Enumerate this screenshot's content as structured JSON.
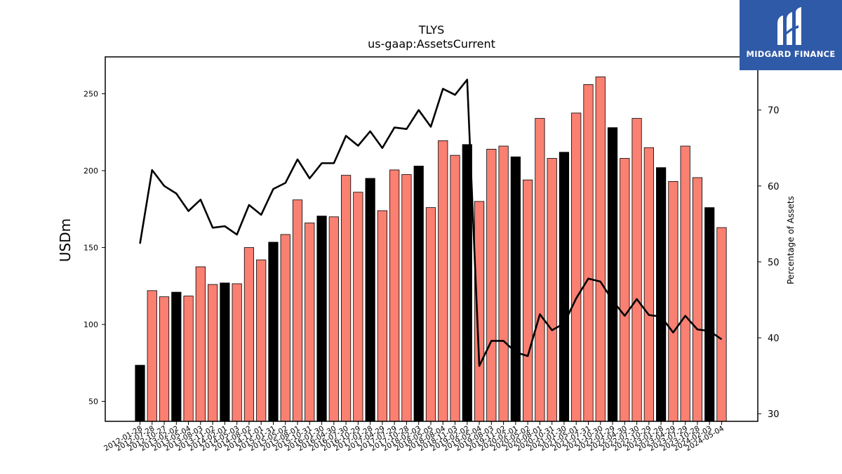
{
  "brand": {
    "name": "MIDGARD FINANCE",
    "bg_color": "#2f5aa8"
  },
  "chart_data": {
    "type": "bar",
    "title": "TLYS",
    "subtitle": "us-gaap:AssetsCurrent",
    "ylabel": "USDm",
    "y2label": "Percentage of Assets",
    "ylim": [
      37,
      274
    ],
    "y2lim": [
      29,
      77
    ],
    "yticks": [
      50,
      100,
      150,
      200,
      250
    ],
    "y2ticks": [
      30,
      40,
      50,
      60,
      70
    ],
    "bar_color": "#fa8072",
    "highlight_color": "#000000",
    "line_color": "#000000",
    "categories": [
      "2012-01-28",
      "2012-07-28",
      "2012-10-27",
      "2013-02-02",
      "2013-05-04",
      "2013-08-03",
      "2013-11-02",
      "2014-02-01",
      "2014-05-03",
      "2014-08-02",
      "2014-11-01",
      "2015-01-31",
      "2015-05-02",
      "2015-08-01",
      "2015-10-31",
      "2016-01-30",
      "2016-04-30",
      "2016-07-30",
      "2016-10-29",
      "2017-01-28",
      "2017-04-29",
      "2017-07-29",
      "2017-10-28",
      "2018-02-03",
      "2018-05-05",
      "2018-08-04",
      "2018-11-03",
      "2019-02-02",
      "2019-05-04",
      "2019-08-03",
      "2019-11-02",
      "2020-02-01",
      "2020-05-02",
      "2020-08-01",
      "2020-10-31",
      "2021-01-30",
      "2021-05-01",
      "2021-07-31",
      "2021-10-30",
      "2022-01-29",
      "2022-04-30",
      "2022-07-30",
      "2022-10-29",
      "2023-01-28",
      "2023-04-29",
      "2023-07-29",
      "2023-10-28",
      "2024-02-03",
      "2024-05-04"
    ],
    "values": [
      73.5,
      122,
      118,
      121,
      118.5,
      137.5,
      126,
      127,
      126.5,
      150,
      142,
      153.5,
      158.5,
      181,
      166,
      170.5,
      170,
      197,
      186,
      195,
      174,
      200.5,
      197.5,
      203,
      176,
      219.5,
      210,
      217,
      180,
      214,
      216,
      209,
      194,
      234,
      208,
      212,
      237.5,
      256,
      261,
      228,
      208,
      234,
      215,
      202,
      193,
      216,
      195.5,
      176,
      163
    ],
    "highlighted": [
      true,
      false,
      false,
      true,
      false,
      false,
      false,
      true,
      false,
      false,
      false,
      true,
      false,
      false,
      false,
      true,
      false,
      false,
      false,
      true,
      false,
      false,
      false,
      true,
      false,
      false,
      false,
      true,
      false,
      false,
      false,
      true,
      false,
      false,
      false,
      true,
      false,
      false,
      false,
      true,
      false,
      false,
      false,
      true,
      false,
      false,
      false,
      true,
      false
    ],
    "pct_of_assets": [
      52.4,
      62.1,
      60,
      59,
      56.7,
      58.2,
      54.5,
      54.7,
      53.6,
      57.5,
      56.2,
      59.6,
      60.4,
      63.5,
      61,
      63,
      63,
      66.6,
      65.3,
      67.2,
      65,
      67.7,
      67.5,
      70,
      67.8,
      72.8,
      72,
      74,
      36.3,
      39.6,
      39.6,
      38.1,
      37.6,
      43.1,
      41,
      41.9,
      45.2,
      47.8,
      47.4,
      44.9,
      42.9,
      45.1,
      43,
      42.8,
      40.7,
      42.9,
      41.1,
      40.9,
      39.8
    ]
  }
}
